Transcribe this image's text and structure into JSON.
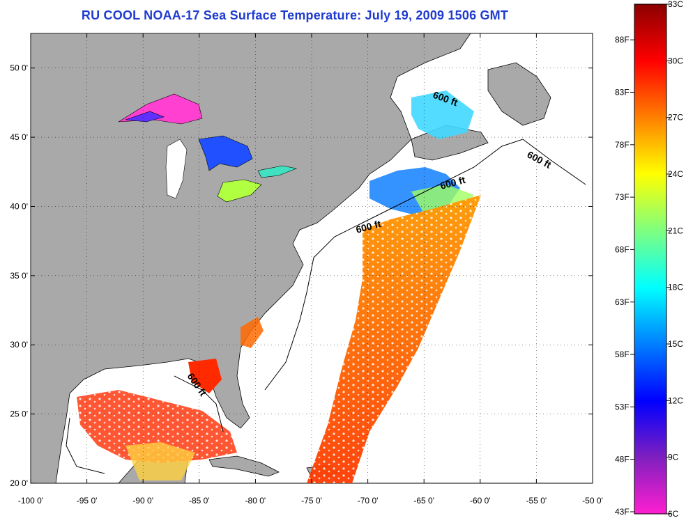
{
  "title": "RU COOL  NOAA-17  Sea Surface Temperature:  July 19, 2009 1506 GMT",
  "map": {
    "x_ticks": [
      "-100 0'",
      "-95 0'",
      "-90 0'",
      "-85 0'",
      "-80 0'",
      "-75 0'",
      "-70 0'",
      "-65 0'",
      "-60 0'",
      "-55 0'",
      "-50 0'"
    ],
    "y_ticks": [
      "20 0'",
      "25 0'",
      "30 0'",
      "35 0'",
      "40 0'",
      "45 0'",
      "50 0'"
    ],
    "lon_range": [
      -100,
      -50
    ],
    "lat_range": [
      20,
      52.5
    ],
    "contour_label": "600 ft",
    "land_color": "#a9a9a9",
    "ocean_no_data_color": "#ffffff"
  },
  "colorbar": {
    "fahrenheit_labels": [
      "88F",
      "83F",
      "78F",
      "73F",
      "68F",
      "63F",
      "58F",
      "53F",
      "48F",
      "43F"
    ],
    "celsius_labels": [
      "33C",
      "30C",
      "27C",
      "24C",
      "21C",
      "18C",
      "15C",
      "12C",
      "9C",
      "6C"
    ],
    "celsius_range": [
      6,
      33
    ],
    "colors_top_to_bottom": [
      "#8b0000",
      "#ff0000",
      "#ff7f00",
      "#ffff00",
      "#7fff7f",
      "#00ffff",
      "#007fff",
      "#0000ff",
      "#7f1fbf",
      "#ff1fd0"
    ]
  }
}
